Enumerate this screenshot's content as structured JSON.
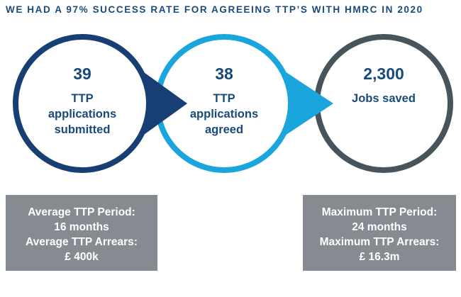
{
  "headline": "WE HAD A 97% SUCCESS RATE FOR AGREEING TTP’S WITH HMRC IN 2020",
  "colors": {
    "dark_blue": "#173f73",
    "light_blue": "#1aa6dd",
    "slate": "#48545c",
    "text_blue": "#1a4a7c",
    "box_grey": "#858b90"
  },
  "stats": [
    {
      "number": "39",
      "label": "TTP\napplications\nsubmitted"
    },
    {
      "number": "38",
      "label": "TTP\napplications\nagreed"
    },
    {
      "number": "2,300",
      "label": "Jobs saved"
    }
  ],
  "left_box": {
    "line1": "Average TTP Period:",
    "line2": "16 months",
    "line3": "Average TTP Arrears:",
    "line4": "£ 400k"
  },
  "right_box": {
    "line1": "Maximum TTP Period:",
    "line2": "24 months",
    "line3": "Maximum TTP Arrears:",
    "line4": "£ 16.3m"
  }
}
